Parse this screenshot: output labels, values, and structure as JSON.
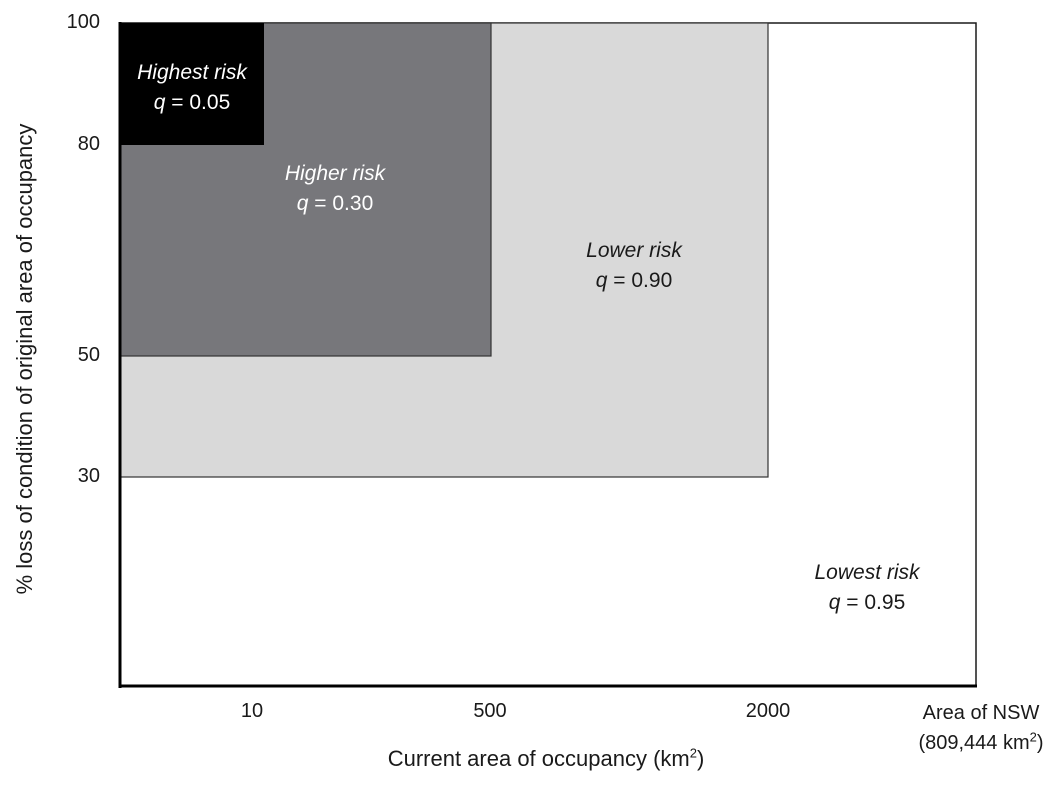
{
  "chart_data": {
    "type": "heatmap",
    "title": "",
    "xlabel": "Current area of occupancy (km",
    "xlabel_sup": "2",
    "xlabel_close": ")",
    "ylabel": "% loss of condition of original area of occupancy",
    "x_ticks": [
      "10",
      "500",
      "2000"
    ],
    "x_end_label_line1": "Area of NSW",
    "x_end_label_line2": "(809,444 km",
    "x_end_label_sup": "2",
    "x_end_label_close": ")",
    "y_ticks": [
      "100",
      "80",
      "50",
      "30"
    ],
    "zones": [
      {
        "name": "Lowest risk",
        "q_symbol": "q",
        "q_text": " = 0.95",
        "q": 0.95,
        "x_max": "Area of NSW",
        "y_min": 0,
        "color": "#ffffff",
        "text_color": "#1a1a1a"
      },
      {
        "name": "Lower risk",
        "q_symbol": "q",
        "q_text": " = 0.90",
        "q": 0.9,
        "x_max": 2000,
        "y_min": 30,
        "color": "#d9d9d9",
        "text_color": "#1a1a1a"
      },
      {
        "name": "Higher risk",
        "q_symbol": "q",
        "q_text": " = 0.30",
        "q": 0.3,
        "x_max": 500,
        "y_min": 50,
        "color": "#77777b",
        "text_color": "#ffffff"
      },
      {
        "name": "Highest risk",
        "q_symbol": "q",
        "q_text": " = 0.05",
        "q": 0.05,
        "x_max": 10,
        "y_min": 80,
        "color": "#000000",
        "text_color": "#ffffff"
      }
    ]
  }
}
